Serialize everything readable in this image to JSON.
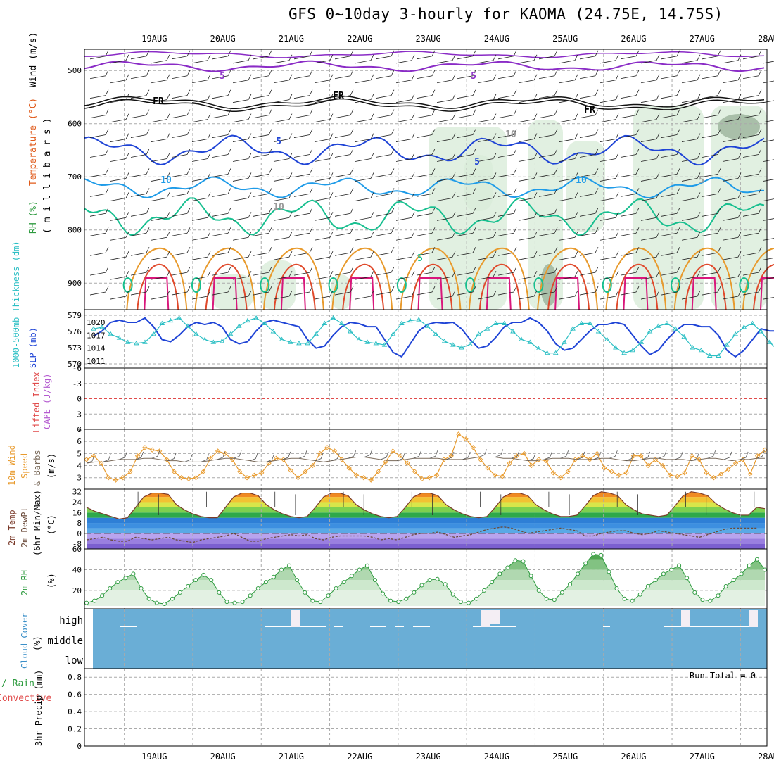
{
  "title": "GFS 0~10day 3-hourly for KAOMA (24.75E, 14.75S)",
  "dates": [
    "19AUG",
    "20AUG",
    "21AUG",
    "22AUG",
    "23AUG",
    "24AUG",
    "25AUG",
    "26AUG",
    "27AUG",
    "28AUG"
  ],
  "run_total": "Run Total = 0",
  "colors": {
    "purple": "#8a2bc6",
    "blue": "#1f44d6",
    "lightblue": "#1e9be8",
    "teal": "#17bf8f",
    "orange": "#e89a2c",
    "red": "#e04a2c",
    "magenta": "#d9177b",
    "green_rh": "#2e9b3f",
    "cloud": "#6aaed6",
    "cyan": "#2bbfc4"
  },
  "panels": {
    "upper": {
      "ylabel_mb": "( m i l l i b a r s )",
      "ylabel_wind": "Wind (m/s)",
      "ylabel_temp": "Temperature (°C)",
      "ylabel_rh": "RH (%)",
      "y_ticks": [
        "500",
        "600",
        "700",
        "800",
        "900"
      ],
      "contour_labels": [
        "5",
        "5",
        "FR",
        "FR",
        "FR",
        "5",
        "5",
        "5",
        "10",
        "10",
        "10",
        "10",
        "5"
      ]
    },
    "thickness": {
      "ylabel_left": "1000-500mb Thickness (dm)",
      "ylabel_right": "SLP (mb)",
      "left_ticks": [
        "579",
        "576",
        "573",
        "570"
      ],
      "right_ticks": [
        "1020",
        "1017",
        "1014",
        "1011"
      ]
    },
    "cape": {
      "ylabel_left": "Lifted Index",
      "ylabel_right": "CAPE (J/kg)",
      "left_ticks": [
        "-6",
        "-3",
        "0",
        "3",
        "6"
      ]
    },
    "wind10m": {
      "ylabel1": "10m Wind",
      "ylabel2": "Speed",
      "ylabel3": "& Barbs",
      "ylabel_unit": "(m/s)",
      "ticks": [
        "7",
        "6",
        "5",
        "4",
        "3"
      ]
    },
    "temp2m": {
      "ylabel1": "2m Temp",
      "ylabel2": "2m DewPt",
      "ylabel3": "(6hr Min/Max)",
      "ylabel_unit": "(°C)",
      "ticks": [
        "32",
        "24",
        "16",
        "8",
        "0",
        "-8"
      ]
    },
    "rh2m": {
      "ylabel": "2m RH",
      "ylabel_unit": "(%)",
      "ticks": [
        "60",
        "40",
        "20"
      ]
    },
    "cloud": {
      "ylabel": "Cloud Cover",
      "ylabel_unit": "(%)",
      "levels": [
        "high",
        "middle",
        "low"
      ]
    },
    "precip": {
      "ylabel1": "Total / Rain",
      "ylabel2": "Convective",
      "ylabel3": "3hr Precip (mm)",
      "ticks": [
        "0.8",
        "0.6",
        "0.4",
        "0.2",
        "0"
      ]
    }
  },
  "chart_data": [
    {
      "type": "line",
      "panel": "thickness",
      "x_step_hours": 3,
      "series": [
        {
          "name": "SLP (mb)",
          "values": [
            1016.8,
            1018,
            1020,
            1020.5,
            1020,
            1020,
            1021,
            1019,
            1016,
            1015.5,
            1017,
            1019,
            1020,
            1019.5,
            1020,
            1019,
            1016,
            1015,
            1015.5,
            1018,
            1020,
            1020.5,
            1020,
            1019.5,
            1019,
            1016,
            1014,
            1014.5,
            1017,
            1019,
            1020,
            1019.7,
            1019,
            1019,
            1016,
            1013,
            1012,
            1015,
            1018,
            1019.5,
            1020,
            1019.8,
            1020,
            1018.5,
            1016,
            1014,
            1014.5,
            1016.5,
            1019,
            1020,
            1020,
            1021,
            1020,
            1018,
            1015,
            1013.5,
            1014,
            1016,
            1018,
            1019.5,
            1019.5,
            1020,
            1019.5,
            1017,
            1014.5,
            1012.5,
            1013.5,
            1016,
            1018,
            1019.5,
            1019.5,
            1019,
            1019,
            1017,
            1013.5,
            1012,
            1013.5,
            1016,
            1018.5,
            1018,
            1018,
            1019.8
          ]
        },
        {
          "name": "1000-500mb Thickness (dm)",
          "values": [
            576.5,
            576.8,
            575.5,
            574.8,
            574,
            573.8,
            574,
            575.5,
            577.5,
            578,
            578.5,
            577,
            575.5,
            574.5,
            574,
            574.2,
            575.5,
            577,
            578,
            578.5,
            577.5,
            576,
            574.5,
            574,
            573.8,
            573.8,
            575.5,
            577.5,
            578.5,
            577.5,
            576,
            574.5,
            574,
            573.8,
            573.5,
            575.5,
            577.5,
            578,
            578.2,
            577,
            575.5,
            574.2,
            573.5,
            573,
            573.6,
            575.5,
            576.5,
            577.5,
            577.5,
            576,
            574.5,
            574,
            572.8,
            572,
            572,
            574,
            576.5,
            577.5,
            577.5,
            576,
            574.5,
            573,
            572,
            572.5,
            574,
            576,
            577,
            577.5,
            576.5,
            575,
            573,
            572.5,
            571.5,
            571.5,
            573.5,
            575.5,
            576.8,
            577.5,
            576,
            574,
            572.5,
            572
          ]
        }
      ]
    },
    {
      "type": "line",
      "panel": "wind10m",
      "x_step_hours": 3,
      "ylim": [
        2,
        7
      ],
      "series": [
        {
          "name": "10m Wind Speed",
          "values": [
            4.5,
            4.8,
            4.2,
            3,
            2.8,
            3,
            3.5,
            4.8,
            5.5,
            5.3,
            5.2,
            4.5,
            3.5,
            3,
            2.9,
            3,
            3.5,
            4.6,
            5.2,
            5,
            4.5,
            3.5,
            3,
            3.2,
            3.4,
            4.2,
            4.6,
            4.5,
            3.6,
            3,
            3.5,
            4,
            5,
            5.5,
            5.2,
            4.5,
            3.8,
            3.2,
            3,
            2.8,
            3.5,
            4.3,
            5.2,
            4.8,
            4.2,
            3.5,
            2.9,
            3,
            3.2,
            4.5,
            4.8,
            6.6,
            6.2,
            5.5,
            4.5,
            3.8,
            3.2,
            3.1,
            4.2,
            4.8,
            5,
            4,
            4.5,
            4.4,
            3.4,
            3,
            3.5,
            4.5,
            4.8,
            4.5,
            5,
            3.8,
            3.5,
            3.2,
            3.4,
            4.8,
            4.8,
            4,
            4.5,
            4,
            3.2,
            3.1,
            3.4,
            4.8,
            4.5,
            3.4,
            3,
            3.3,
            3.7,
            4.2,
            4.5,
            3.3,
            4.8,
            5.3
          ]
        },
        {
          "name": "Barb speed",
          "values": [
            4.2,
            4.3,
            4.3,
            4.4,
            4.5,
            4.5,
            4.5,
            4.6,
            4.6,
            4.5,
            4.4,
            4.4,
            4.3,
            4.3,
            4.3,
            4.4,
            4.5,
            4.6,
            4.6,
            4.5,
            4.4,
            4.3,
            4.3,
            4.4,
            4.5,
            4.6,
            4.6,
            4.5,
            4.4,
            4.3,
            4.4,
            4.5,
            4.6,
            4.7,
            4.7,
            4.6,
            4.5,
            4.4,
            4.4,
            4.5,
            4.6,
            4.6,
            4.6,
            4.6,
            4.5,
            4.5,
            4.5,
            4.6,
            4.7,
            4.7,
            4.7,
            4.6,
            4.6,
            4.5,
            4.4,
            4.4,
            4.5,
            4.6,
            4.6,
            4.6,
            4.5,
            4.5,
            4.5,
            4.6,
            4.6,
            4.5,
            4.4,
            4.4,
            4.5,
            4.6,
            4.6,
            4.5,
            4.5,
            4.5,
            4.4,
            4.5,
            4.6,
            4.6,
            4.5,
            4.4,
            4.5,
            4.5,
            4.6,
            4.6
          ]
        }
      ]
    },
    {
      "type": "area",
      "panel": "temp2m",
      "x_step_hours": 3,
      "ylim": [
        -12,
        34
      ],
      "series": [
        {
          "name": "2m Temp",
          "values": [
            20,
            17,
            15,
            13,
            11,
            12,
            20,
            28,
            31,
            31,
            30,
            22,
            18,
            15,
            13,
            12,
            12,
            20,
            28,
            31,
            31,
            29,
            22,
            18,
            15,
            13,
            12,
            13,
            20,
            28,
            31,
            31,
            29,
            22,
            18,
            15,
            13,
            12,
            13,
            20,
            28,
            31,
            31,
            29,
            22,
            18,
            15,
            13,
            12,
            13,
            20,
            28,
            31,
            31,
            29,
            22,
            18,
            15,
            13,
            13,
            14,
            21,
            29,
            32,
            31,
            29,
            22,
            18,
            15,
            14,
            13,
            14,
            21,
            29,
            32,
            31,
            29,
            23,
            19,
            16,
            14,
            14,
            20,
            19
          ]
        },
        {
          "name": "2m DewPt",
          "values": [
            -5,
            -4,
            -3,
            -5,
            -6,
            -6,
            -3,
            -4,
            -5,
            -4,
            -3,
            -5,
            -6,
            -7,
            -5,
            -4,
            -3,
            -2,
            0,
            -3,
            -6,
            -6,
            -4,
            -3,
            -2,
            -1,
            -2,
            -1,
            -4,
            -5,
            -3,
            -2,
            -2,
            -2,
            -2,
            -3,
            -5,
            -4,
            -5,
            -3,
            -1,
            0,
            0,
            1,
            -1,
            -3,
            -2,
            -1,
            1,
            3,
            4,
            5,
            4,
            2,
            0,
            1,
            2,
            3,
            4,
            3,
            2,
            -2,
            -2,
            0,
            1,
            2,
            2,
            0,
            -1,
            0,
            2,
            1,
            0,
            -1,
            -2,
            -3,
            -1,
            1,
            3,
            4,
            4,
            4,
            4
          ]
        }
      ]
    },
    {
      "type": "area",
      "panel": "rh2m",
      "x_step_hours": 3,
      "ylim": [
        5,
        60
      ],
      "series": [
        {
          "name": "2m RH",
          "values": [
            8,
            10,
            15,
            22,
            28,
            32,
            36,
            22,
            12,
            8,
            7,
            12,
            18,
            24,
            30,
            35,
            30,
            18,
            9,
            8,
            9,
            15,
            22,
            28,
            33,
            40,
            44,
            30,
            18,
            10,
            9,
            15,
            22,
            28,
            34,
            40,
            44,
            30,
            17,
            10,
            9,
            12,
            18,
            25,
            30,
            31,
            26,
            16,
            9,
            8,
            12,
            20,
            28,
            36,
            42,
            49,
            48,
            34,
            20,
            12,
            11,
            18,
            26,
            36,
            46,
            55,
            54,
            38,
            22,
            12,
            10,
            16,
            24,
            30,
            36,
            40,
            44,
            32,
            18,
            11,
            10,
            15,
            24,
            30,
            36,
            44,
            50,
            40
          ]
        }
      ]
    },
    {
      "type": "bar",
      "panel": "precip",
      "ylim": [
        0,
        0.9
      ],
      "values": [
        0
      ]
    }
  ]
}
